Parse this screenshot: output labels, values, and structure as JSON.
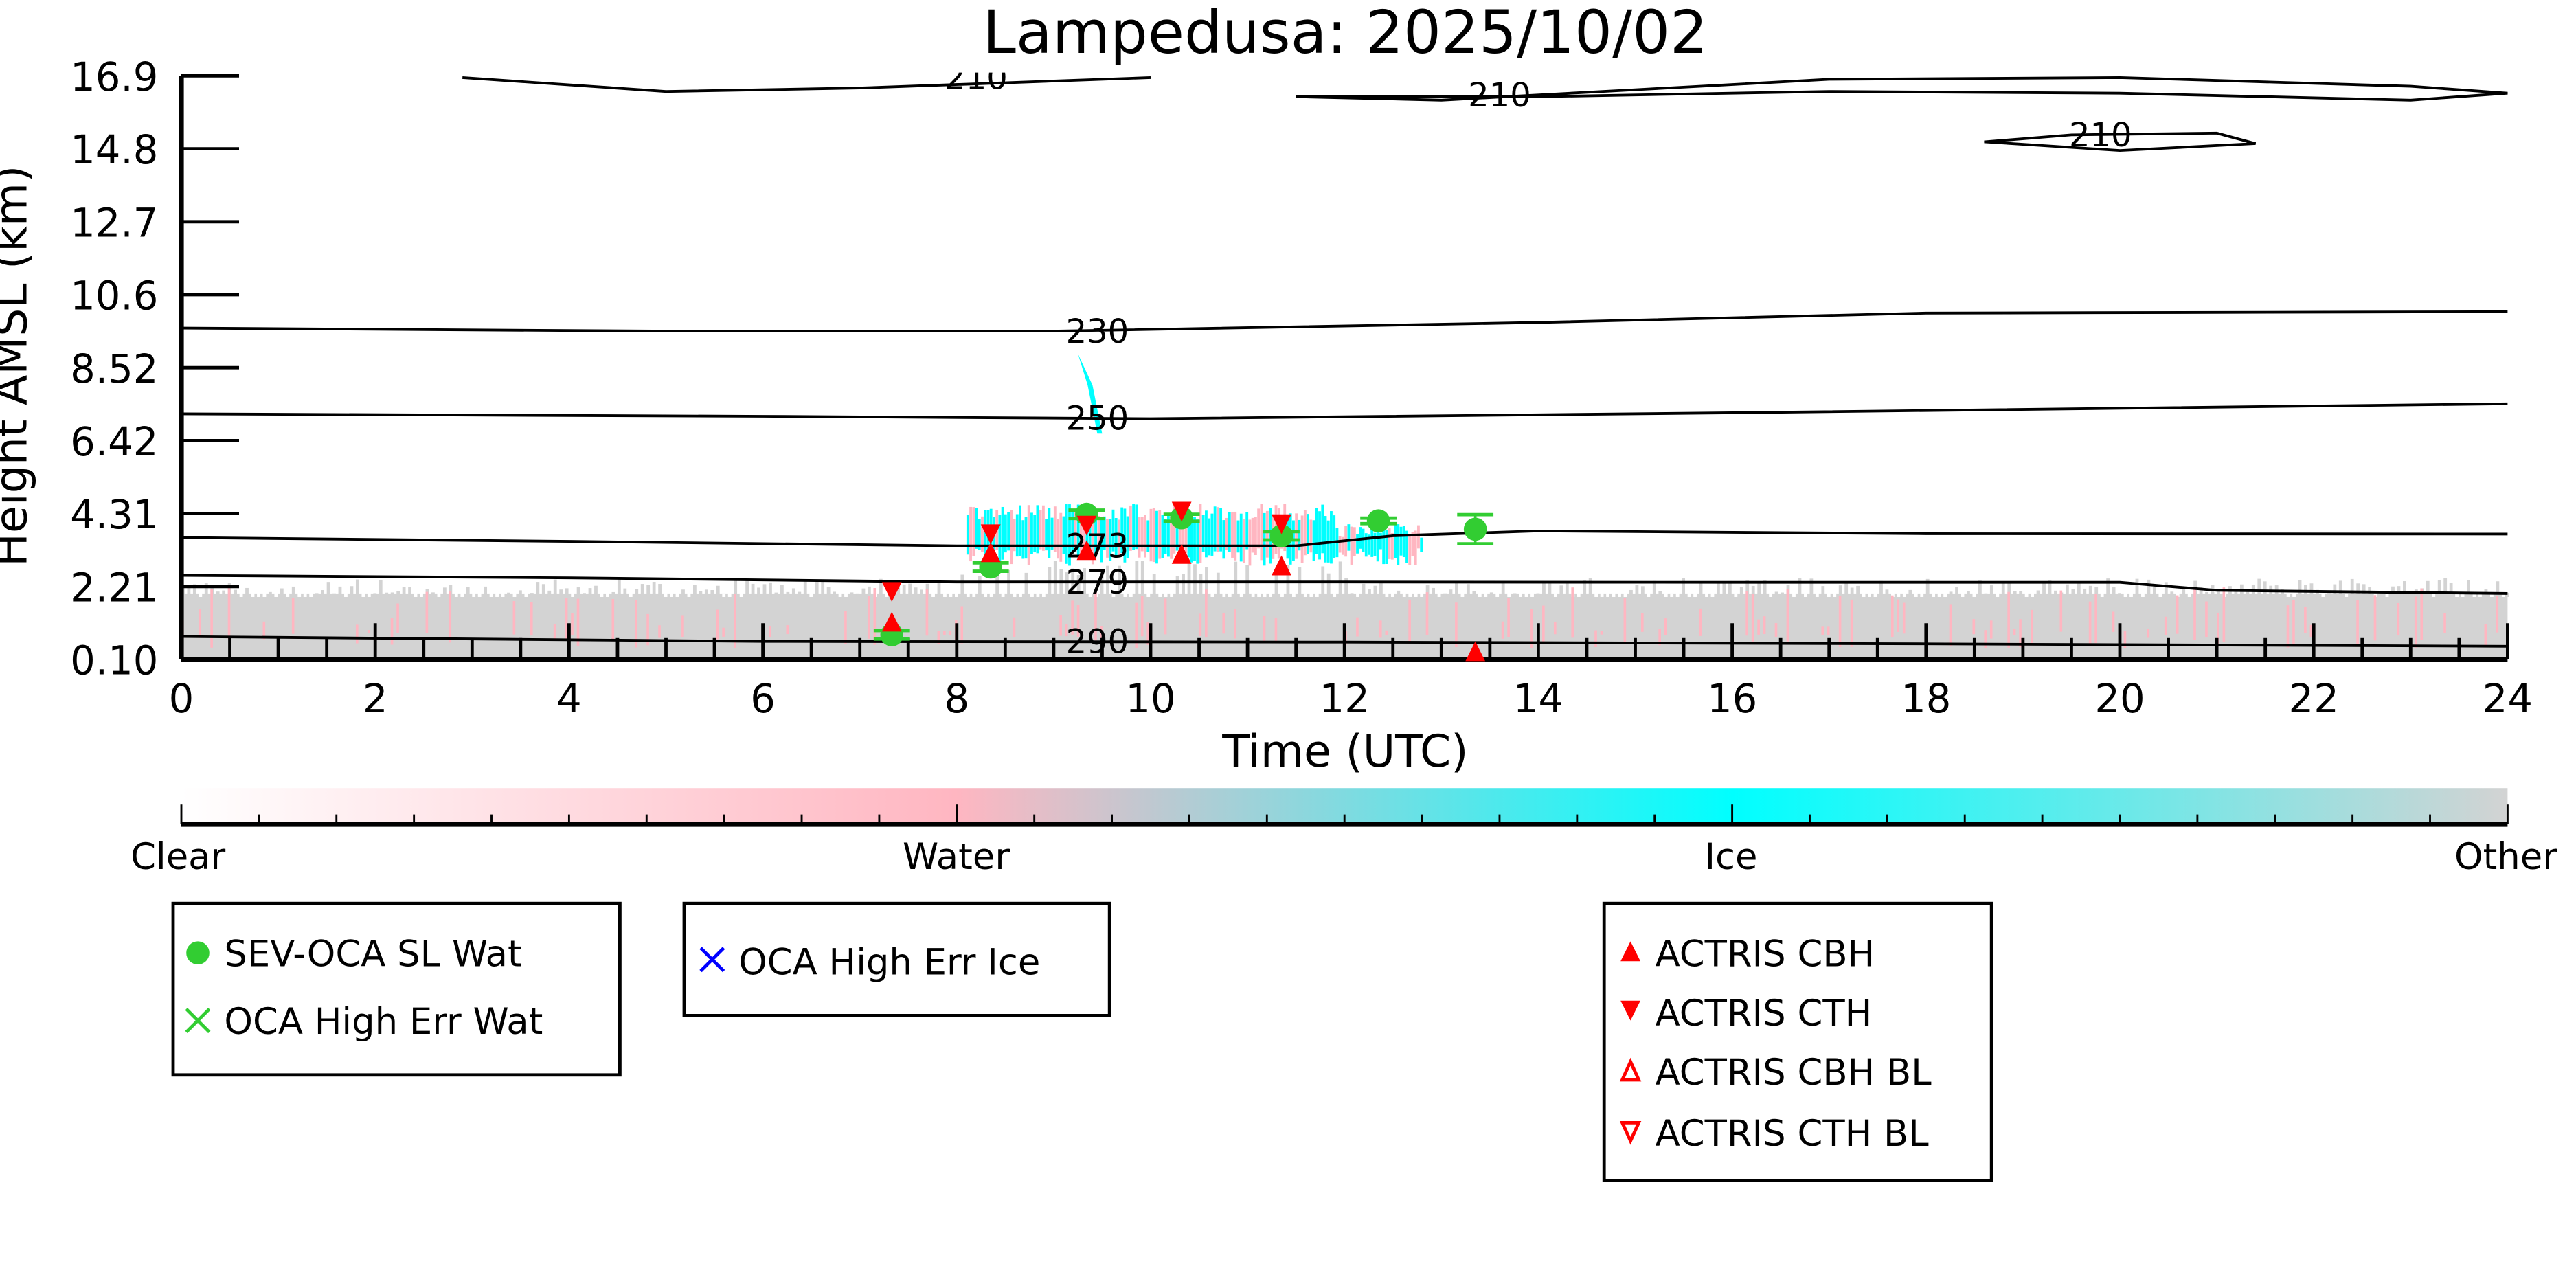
{
  "chart_data": {
    "type": "scatter",
    "title": "Lampedusa: 2025/10/02",
    "xlabel": "Time (UTC)",
    "ylabel": "Height AMSL (km)",
    "xlim": [
      0,
      24
    ],
    "ylim": [
      0.1,
      16.9
    ],
    "x_ticks": [
      "0",
      "2",
      "4",
      "6",
      "8",
      "10",
      "12",
      "14",
      "16",
      "18",
      "20",
      "22",
      "24"
    ],
    "y_ticks": [
      "0.10",
      "2.21",
      "4.31",
      "6.42",
      "8.52",
      "10.6",
      "12.7",
      "14.8",
      "16.9"
    ],
    "grid": false,
    "series": [
      {
        "name": "SEV-OCA SL Wat",
        "marker": "circle",
        "color": "#32cd32",
        "x": [
          7.33,
          8.35,
          9.34,
          10.32,
          11.35,
          12.35,
          13.35
        ],
        "y": [
          0.81,
          2.76,
          4.28,
          4.18,
          3.66,
          4.09,
          3.85
        ],
        "err": [
          0.12,
          0.12,
          0.12,
          0.1,
          0.12,
          0.08,
          0.42
        ]
      },
      {
        "name": "OCA High Err Wat",
        "marker": "x",
        "color": "#32cd32",
        "x": [],
        "y": []
      },
      {
        "name": "OCA High Err Ice",
        "marker": "x",
        "color": "#0000ff",
        "x": [],
        "y": []
      },
      {
        "name": "ACTRIS CBH",
        "marker": "triangle-up",
        "color": "#ff0000",
        "x": [
          7.33,
          8.35,
          9.34,
          10.32,
          11.35,
          13.35
        ],
        "y": [
          1.14,
          3.14,
          3.2,
          3.09,
          2.76,
          0.29
        ]
      },
      {
        "name": "ACTRIS CTH",
        "marker": "triangle-down",
        "color": "#ff0000",
        "x": [
          7.33,
          8.35,
          9.34,
          10.32,
          11.35
        ],
        "y": [
          2.09,
          3.75,
          4.0,
          4.4,
          4.04
        ]
      },
      {
        "name": "ACTRIS CBH BL",
        "marker": "triangle-up-open",
        "color": "#ff0000",
        "x": [],
        "y": []
      },
      {
        "name": "ACTRIS CTH BL",
        "marker": "triangle-down-open",
        "color": "#ff0000",
        "x": [],
        "y": []
      }
    ],
    "contours": [
      {
        "label": "210",
        "label_at": [
          8.2,
          16.85
        ],
        "points": [
          [
            2.9,
            16.85
          ],
          [
            5,
            16.45
          ],
          [
            7,
            16.55
          ],
          [
            10,
            16.85
          ]
        ]
      },
      {
        "label": "210",
        "label_at": [
          13.6,
          16.35
        ],
        "points": [
          [
            11.5,
            16.3
          ],
          [
            13,
            16.2
          ],
          [
            15,
            16.5
          ],
          [
            17,
            16.8
          ],
          [
            20,
            16.85
          ],
          [
            23,
            16.6
          ],
          [
            24,
            16.4
          ],
          [
            23,
            16.2
          ],
          [
            20,
            16.4
          ],
          [
            17,
            16.45
          ],
          [
            14,
            16.3
          ],
          [
            11.5,
            16.3
          ]
        ]
      },
      {
        "label": "210",
        "label_at": [
          19.8,
          15.2
        ],
        "points": [
          [
            18.6,
            15.0
          ],
          [
            19.5,
            15.2
          ],
          [
            21,
            15.25
          ],
          [
            21.4,
            14.95
          ],
          [
            20,
            14.75
          ],
          [
            18.6,
            15.0
          ]
        ]
      },
      {
        "label": "230",
        "label_at": [
          9.45,
          9.55
        ],
        "points": [
          [
            0,
            9.64
          ],
          [
            5,
            9.55
          ],
          [
            9,
            9.55
          ],
          [
            14,
            9.8
          ],
          [
            18,
            10.07
          ],
          [
            24,
            10.11
          ]
        ]
      },
      {
        "label": "250",
        "label_at": [
          9.45,
          7.05
        ],
        "points": [
          [
            0,
            7.17
          ],
          [
            6,
            7.1
          ],
          [
            10,
            7.03
          ],
          [
            16,
            7.2
          ],
          [
            24,
            7.46
          ]
        ]
      },
      {
        "label": "273",
        "label_at": [
          9.45,
          3.37
        ],
        "points": [
          [
            0,
            3.61
          ],
          [
            4,
            3.5
          ],
          [
            8,
            3.37
          ],
          [
            11.5,
            3.37
          ],
          [
            12.5,
            3.66
          ],
          [
            14,
            3.8
          ],
          [
            18,
            3.72
          ],
          [
            24,
            3.71
          ]
        ]
      },
      {
        "label": "279",
        "label_at": [
          9.45,
          2.33
        ],
        "points": [
          [
            0,
            2.52
          ],
          [
            4,
            2.45
          ],
          [
            8,
            2.33
          ],
          [
            12,
            2.33
          ],
          [
            16,
            2.32
          ],
          [
            20,
            2.32
          ],
          [
            21,
            2.09
          ],
          [
            24,
            2.0
          ]
        ]
      },
      {
        "label": "290",
        "label_at": [
          9.45,
          0.62
        ],
        "points": [
          [
            0,
            0.76
          ],
          [
            6,
            0.62
          ],
          [
            12,
            0.6
          ],
          [
            18,
            0.55
          ],
          [
            24,
            0.48
          ]
        ]
      }
    ],
    "colorbar": {
      "labels": [
        "Clear",
        "Water",
        "Ice",
        "Other"
      ],
      "colors": [
        "#ffffff",
        "#ffb6c1",
        "#00ffff",
        "#d3d3d3"
      ]
    },
    "legend_groups": [
      [
        "SEV-OCA SL Wat",
        "OCA High Err Wat"
      ],
      [
        "OCA High Err Ice"
      ],
      [
        "ACTRIS CBH",
        "ACTRIS CTH",
        "ACTRIS CBH BL",
        "ACTRIS CTH BL"
      ]
    ]
  }
}
